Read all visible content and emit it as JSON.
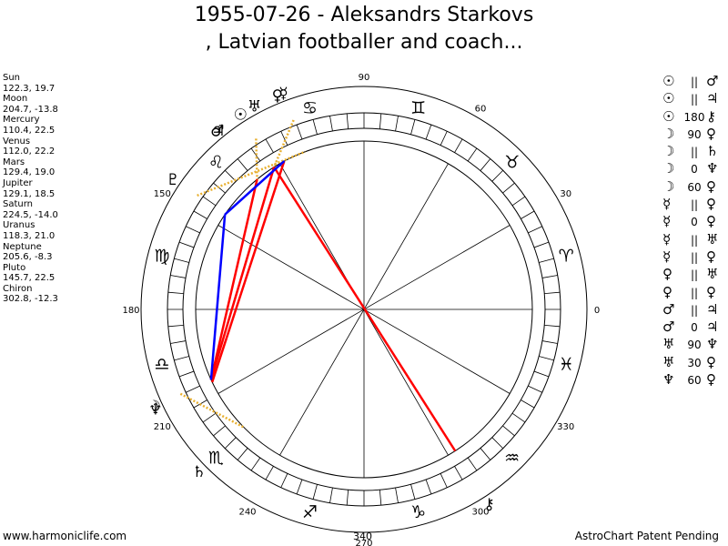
{
  "title_line1": "1955-07-26 - Aleksandrs Starkovs",
  "title_line2": ", Latvian footballer and coach...",
  "planets": [
    {
      "name": "Sun",
      "glyph": "☉",
      "coords": "122.3, 19.7",
      "lon": 122.3,
      "lat": 19.7
    },
    {
      "name": "Moon",
      "glyph": "☽",
      "coords": "204.7, -13.8",
      "lon": 204.7,
      "lat": -13.8
    },
    {
      "name": "Mercury",
      "glyph": "☿",
      "coords": "110.4, 22.5",
      "lon": 110.4,
      "lat": 22.5
    },
    {
      "name": "Venus",
      "glyph": "♀",
      "coords": "112.0, 22.2",
      "lon": 112.0,
      "lat": 22.2
    },
    {
      "name": "Mars",
      "glyph": "♂",
      "coords": "129.4, 19.0",
      "lon": 129.4,
      "lat": 19.0
    },
    {
      "name": "Jupiter",
      "glyph": "♃",
      "coords": "129.1, 18.5",
      "lon": 129.1,
      "lat": 18.5
    },
    {
      "name": "Saturn",
      "glyph": "♄",
      "coords": "224.5, -14.0",
      "lon": 224.5,
      "lat": -14.0
    },
    {
      "name": "Uranus",
      "glyph": "♅",
      "coords": "118.3, 21.0",
      "lon": 118.3,
      "lat": 21.0
    },
    {
      "name": "Neptune",
      "glyph": "♆",
      "coords": "205.6, -8.3",
      "lon": 205.6,
      "lat": -8.3
    },
    {
      "name": "Pluto",
      "glyph": "♇",
      "coords": "145.7, 22.5",
      "lon": 145.7,
      "lat": 22.5
    },
    {
      "name": "Chiron",
      "glyph": "⚷",
      "coords": "302.8, -12.3",
      "lon": 302.8,
      "lat": -12.3
    }
  ],
  "aspects": [
    {
      "p1": "☉",
      "type": "||",
      "p2": "♂"
    },
    {
      "p1": "☉",
      "type": "||",
      "p2": "♃"
    },
    {
      "p1": "☉",
      "type": "180",
      "p2": "⚷"
    },
    {
      "p1": "☽",
      "type": "90",
      "p2": "♀"
    },
    {
      "p1": "☽",
      "type": "||",
      "p2": "♄"
    },
    {
      "p1": "☽",
      "type": "0",
      "p2": "♆"
    },
    {
      "p1": "☽",
      "type": "60",
      "p2": "♀"
    },
    {
      "p1": "☿",
      "type": "||",
      "p2": "♀"
    },
    {
      "p1": "☿",
      "type": "0",
      "p2": "♀"
    },
    {
      "p1": "☿",
      "type": "||",
      "p2": "♅"
    },
    {
      "p1": "☿",
      "type": "||",
      "p2": "♀"
    },
    {
      "p1": "♀",
      "type": "||",
      "p2": "♅"
    },
    {
      "p1": "♀",
      "type": "||",
      "p2": "♀"
    },
    {
      "p1": "♂",
      "type": "||",
      "p2": "♃"
    },
    {
      "p1": "♂",
      "type": "0",
      "p2": "♃"
    },
    {
      "p1": "♅",
      "type": "90",
      "p2": "♆"
    },
    {
      "p1": "♅",
      "type": "30",
      "p2": "♀"
    },
    {
      "p1": "♆",
      "type": "60",
      "p2": "♀"
    }
  ],
  "degree_labels": [
    {
      "deg": 0,
      "text": "0"
    },
    {
      "deg": 30,
      "text": "30"
    },
    {
      "deg": 60,
      "text": "60"
    },
    {
      "deg": 90,
      "text": "90"
    },
    {
      "deg": 150,
      "text": "150"
    },
    {
      "deg": 180,
      "text": "180"
    },
    {
      "deg": 210,
      "text": "210"
    },
    {
      "deg": 240,
      "text": "240"
    },
    {
      "deg": 270,
      "text": "270"
    },
    {
      "deg": 300,
      "text": "300"
    },
    {
      "deg": 330,
      "text": "330"
    }
  ],
  "zodiac": [
    {
      "deg": 15,
      "glyph": "♈",
      "name": "aries"
    },
    {
      "deg": 45,
      "glyph": "♉",
      "name": "taurus"
    },
    {
      "deg": 75,
      "glyph": "♊",
      "name": "gemini"
    },
    {
      "deg": 105,
      "glyph": "♋",
      "name": "cancer"
    },
    {
      "deg": 135,
      "glyph": "♌",
      "name": "leo"
    },
    {
      "deg": 165,
      "glyph": "♍",
      "name": "virgo"
    },
    {
      "deg": 195,
      "glyph": "♎",
      "name": "libra"
    },
    {
      "deg": 225,
      "glyph": "♏",
      "name": "scorpio"
    },
    {
      "deg": 255,
      "glyph": "♐",
      "name": "sagittarius"
    },
    {
      "deg": 285,
      "glyph": "♑",
      "name": "capricorn"
    },
    {
      "deg": 315,
      "glyph": "♒",
      "name": "aquarius"
    },
    {
      "deg": 345,
      "glyph": "♓",
      "name": "pisces"
    }
  ],
  "chart_lines": [
    {
      "from": "Sun",
      "to": "Chiron",
      "color": "#ff0000"
    },
    {
      "from": "Uranus",
      "to": "Neptune",
      "color": "#ff0000"
    },
    {
      "from": "Sun",
      "to": "Moon",
      "color": "#ff0000"
    },
    {
      "from": "Mars",
      "to": "Moon",
      "color": "#ff0000"
    },
    {
      "from": "Uranus",
      "to": "Pluto",
      "color": "#0000ff"
    },
    {
      "from": "Pluto",
      "to": "Moon",
      "color": "#0000ff"
    }
  ],
  "colors": {
    "aspect_hard": "#ff0000",
    "aspect_soft": "#0000ff",
    "dotted": "#e8b030"
  },
  "footer_left": "www.harmoniclife.com",
  "footer_center": "340",
  "footer_right": "AstroChart Patent Pending"
}
